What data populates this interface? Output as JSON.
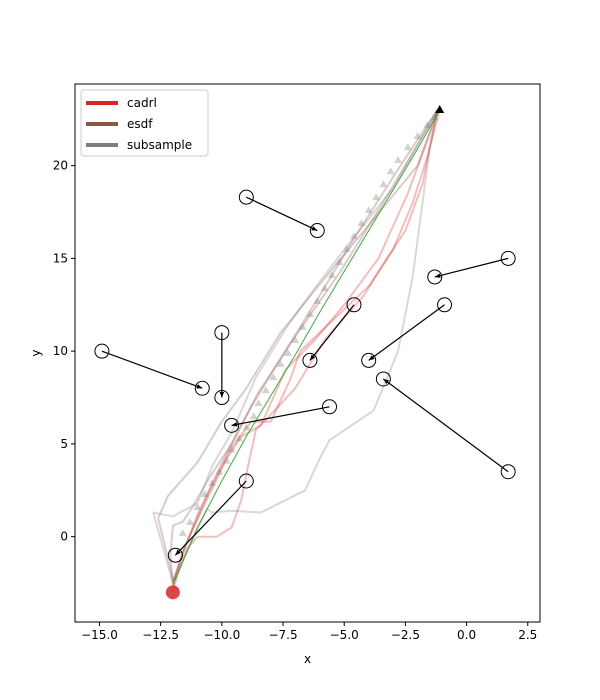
{
  "chart_data": {
    "type": "line",
    "title": "",
    "xlabel": "x",
    "ylabel": "y",
    "xlim": [
      -16,
      3
    ],
    "ylim": [
      -4.6,
      24.4
    ],
    "xticks": [
      -15.0,
      -12.5,
      -10.0,
      -7.5,
      -5.0,
      -2.5,
      0.0,
      2.5
    ],
    "xtick_labels": [
      "−15.0",
      "−12.5",
      "−10.0",
      "−7.5",
      "−5.0",
      "−2.5",
      "0.0",
      "2.5"
    ],
    "yticks": [
      0,
      5,
      10,
      15,
      20
    ],
    "ytick_labels": [
      "0",
      "5",
      "10",
      "15",
      "20"
    ],
    "grid": false,
    "legend_position": "top-left",
    "series": [
      {
        "name": "cadrl",
        "color": "#d62728",
        "runs": [
          [
            [
              -12.0,
              -3.0
            ],
            [
              -11.8,
              -2.0
            ],
            [
              -11.4,
              -0.6
            ],
            [
              -11.0,
              0.0
            ],
            [
              -10.2,
              0.0
            ],
            [
              -9.6,
              0.5
            ],
            [
              -9.2,
              2.0
            ],
            [
              -8.9,
              4.0
            ],
            [
              -8.6,
              5.8
            ],
            [
              -8.2,
              6.3
            ],
            [
              -7.0,
              8.0
            ],
            [
              -5.8,
              10.6
            ],
            [
              -4.2,
              13.0
            ],
            [
              -3.0,
              15.5
            ],
            [
              -2.2,
              18.0
            ],
            [
              -1.6,
              20.5
            ],
            [
              -1.1,
              23.0
            ]
          ],
          [
            [
              -12.0,
              -2.5
            ],
            [
              -11.5,
              -0.5
            ],
            [
              -10.5,
              2.5
            ],
            [
              -9.6,
              4.8
            ],
            [
              -8.8,
              6.2
            ],
            [
              -8.0,
              6.2
            ],
            [
              -7.2,
              8.5
            ],
            [
              -6.8,
              10.0
            ],
            [
              -6.0,
              11.0
            ],
            [
              -4.0,
              13.5
            ],
            [
              -2.5,
              16.5
            ],
            [
              -1.8,
              19.0
            ],
            [
              -1.2,
              23.0
            ]
          ],
          [
            [
              -12.0,
              -2.7
            ],
            [
              -11.6,
              -0.8
            ],
            [
              -10.8,
              1.5
            ],
            [
              -9.8,
              4.2
            ],
            [
              -9.2,
              5.4
            ],
            [
              -8.4,
              6.0
            ],
            [
              -7.4,
              9.0
            ],
            [
              -6.2,
              10.6
            ],
            [
              -5.0,
              12.5
            ],
            [
              -3.6,
              15.0
            ],
            [
              -2.4,
              18.5
            ],
            [
              -1.2,
              22.8
            ]
          ]
        ]
      },
      {
        "name": "esdf",
        "color": "#8c564b",
        "runs": [
          [
            [
              -12.0,
              -2.6
            ],
            [
              -12.1,
              -1.0
            ],
            [
              -12.0,
              0.6
            ],
            [
              -11.6,
              0.8
            ],
            [
              -11.2,
              1.6
            ],
            [
              -10.5,
              3.2
            ],
            [
              -9.6,
              5.0
            ],
            [
              -8.8,
              7.0
            ],
            [
              -7.5,
              9.8
            ],
            [
              -6.0,
              13.0
            ],
            [
              -4.4,
              16.5
            ],
            [
              -2.8,
              19.8
            ],
            [
              -1.2,
              23.0
            ]
          ],
          [
            [
              -12.0,
              -2.4
            ],
            [
              -11.0,
              1.2
            ],
            [
              -9.8,
              4.5
            ],
            [
              -8.5,
              7.8
            ],
            [
              -7.0,
              10.8
            ],
            [
              -5.2,
              14.2
            ],
            [
              -3.5,
              17.8
            ],
            [
              -1.2,
              22.9
            ]
          ],
          [
            [
              -12.0,
              -2.3
            ],
            [
              -12.6,
              1.0
            ],
            [
              -12.2,
              2.2
            ],
            [
              -11.0,
              4.0
            ],
            [
              -10.0,
              6.2
            ],
            [
              -9.0,
              8.0
            ],
            [
              -7.6,
              11.0
            ],
            [
              -6.0,
              13.6
            ],
            [
              -4.0,
              16.8
            ],
            [
              -2.0,
              20.0
            ],
            [
              -1.2,
              22.9
            ]
          ]
        ]
      },
      {
        "name": "subsample",
        "color": "#7f7f7f",
        "runs": [
          [
            [
              -12.0,
              -2.5
            ],
            [
              -12.8,
              1.3
            ],
            [
              -12.0,
              1.1
            ],
            [
              -11.0,
              1.8
            ],
            [
              -10.4,
              3.8
            ],
            [
              -9.6,
              5.6
            ],
            [
              -8.6,
              8.6
            ],
            [
              -7.4,
              11.2
            ],
            [
              -6.2,
              13.4
            ],
            [
              -4.8,
              15.8
            ],
            [
              -3.0,
              18.8
            ],
            [
              -1.2,
              23.0
            ]
          ],
          [
            [
              -12.0,
              -2.4
            ],
            [
              -10.6,
              1.5
            ],
            [
              -10.4,
              1.3
            ],
            [
              -9.6,
              1.4
            ],
            [
              -8.4,
              1.3
            ],
            [
              -6.6,
              2.5
            ],
            [
              -6.0,
              4.2
            ],
            [
              -5.6,
              5.2
            ],
            [
              -3.8,
              6.8
            ],
            [
              -2.8,
              10.0
            ],
            [
              -2.2,
              14.0
            ],
            [
              -1.8,
              18.0
            ],
            [
              -1.5,
              21.0
            ],
            [
              -1.2,
              22.9
            ]
          ]
        ],
        "markers": [
          [
            -11.6,
            0.2
          ],
          [
            -11.3,
            0.8
          ],
          [
            -11.0,
            1.6
          ],
          [
            -10.7,
            2.3
          ],
          [
            -10.4,
            2.9
          ],
          [
            -10.1,
            3.5
          ],
          [
            -9.8,
            4.1
          ],
          [
            -9.6,
            4.7
          ],
          [
            -9.3,
            5.3
          ],
          [
            -9.0,
            5.9
          ],
          [
            -8.7,
            6.5
          ],
          [
            -8.5,
            7.2
          ],
          [
            -8.2,
            7.9
          ],
          [
            -7.9,
            8.6
          ],
          [
            -7.6,
            9.3
          ],
          [
            -7.3,
            9.9
          ],
          [
            -7.0,
            10.6
          ],
          [
            -6.7,
            11.3
          ],
          [
            -6.4,
            12.0
          ],
          [
            -6.1,
            12.7
          ],
          [
            -5.8,
            13.4
          ],
          [
            -5.5,
            14.1
          ],
          [
            -5.2,
            14.8
          ],
          [
            -4.9,
            15.5
          ],
          [
            -4.6,
            16.2
          ],
          [
            -4.3,
            16.9
          ],
          [
            -4.0,
            17.6
          ],
          [
            -3.7,
            18.3
          ],
          [
            -3.4,
            19.0
          ],
          [
            -3.1,
            19.7
          ],
          [
            -2.8,
            20.3
          ],
          [
            -2.4,
            21.0
          ],
          [
            -2.0,
            21.6
          ],
          [
            -1.6,
            22.2
          ],
          [
            -1.3,
            22.6
          ]
        ]
      }
    ],
    "reference_path": {
      "color": "#2ca02c",
      "points": [
        [
          -12.0,
          -2.6
        ],
        [
          -11.0,
          0.5
        ],
        [
          -10.0,
          3.0
        ],
        [
          -9.0,
          5.4
        ],
        [
          -8.0,
          7.6
        ],
        [
          -7.0,
          9.8
        ],
        [
          -6.0,
          12.1
        ],
        [
          -5.0,
          14.3
        ],
        [
          -4.0,
          16.5
        ],
        [
          -3.0,
          18.7
        ],
        [
          -2.0,
          20.9
        ],
        [
          -1.1,
          23.0
        ]
      ]
    },
    "goal_marker": [
      -1.1,
      23.0
    ],
    "obstacles": [
      {
        "start": [
          -9.0,
          18.3
        ],
        "end": [
          -6.1,
          16.5
        ]
      },
      {
        "start": [
          1.7,
          15.0
        ],
        "end": [
          -1.3,
          14.0
        ]
      },
      {
        "start": [
          -0.9,
          12.5
        ],
        "end": [
          -4.0,
          9.5
        ]
      },
      {
        "start": [
          -4.6,
          12.5
        ],
        "end": [
          -6.4,
          9.5
        ]
      },
      {
        "start": [
          -14.9,
          10.0
        ],
        "end": [
          -10.8,
          8.0
        ]
      },
      {
        "start": [
          -10.0,
          11.0
        ],
        "end": [
          -10.0,
          7.5
        ]
      },
      {
        "start": [
          1.7,
          3.5
        ],
        "end": [
          -3.4,
          8.5
        ]
      },
      {
        "start": [
          -5.6,
          7.0
        ],
        "end": [
          -9.6,
          6.0
        ]
      },
      {
        "start": [
          -9.0,
          3.0
        ],
        "end": [
          -11.9,
          -1.0
        ]
      }
    ]
  }
}
